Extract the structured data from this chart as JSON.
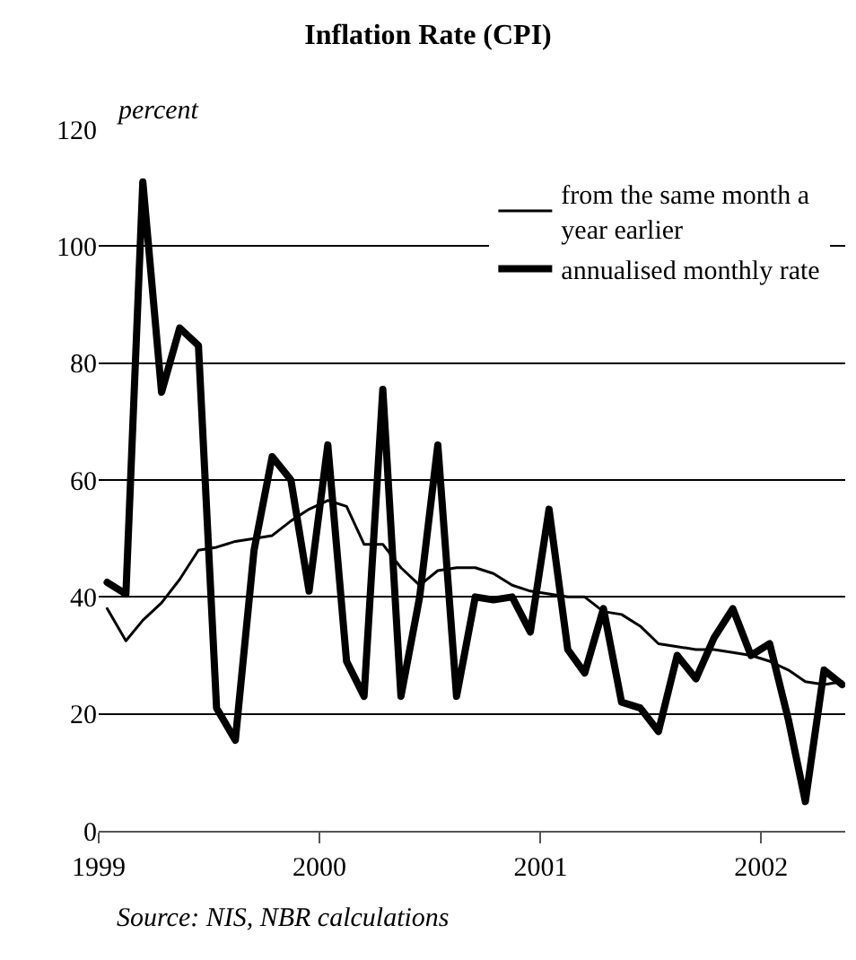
{
  "chart_data": {
    "type": "line",
    "title": "Inflation Rate (CPI)",
    "ylabel": "percent",
    "x": [
      "1999-01-15",
      "1999-02-15",
      "1999-03-15",
      "1999-04-15",
      "1999-05-15",
      "1999-06-15",
      "1999-07-15",
      "1999-08-15",
      "1999-09-15",
      "1999-10-15",
      "1999-11-15",
      "1999-12-15",
      "2000-01-15",
      "2000-02-15",
      "2000-03-15",
      "2000-04-15",
      "2000-05-15",
      "2000-06-15",
      "2000-07-15",
      "2000-08-15",
      "2000-09-15",
      "2000-10-15",
      "2000-11-15",
      "2000-12-15",
      "2001-01-15",
      "2001-02-15",
      "2001-03-15",
      "2001-04-15",
      "2001-05-15",
      "2001-06-15",
      "2001-07-15",
      "2001-08-15",
      "2001-09-15",
      "2001-10-15",
      "2001-11-15",
      "2001-12-15",
      "2002-01-15",
      "2002-02-15",
      "2002-03-15",
      "2002-04-15",
      "2002-05-15"
    ],
    "series": [
      {
        "name": "from the same month a year earlier",
        "color": "#000000",
        "values": [
          38,
          32.5,
          36,
          39,
          43,
          48,
          48.5,
          49.5,
          50,
          50.5,
          53,
          55,
          56.5,
          55.5,
          49,
          49,
          45,
          42,
          44.5,
          45,
          45,
          44,
          42,
          41,
          40.5,
          40,
          40,
          37.5,
          37,
          35,
          32,
          31.5,
          31,
          31,
          30.5,
          30,
          29,
          27.5,
          25.5,
          25,
          25.5
        ]
      },
      {
        "name": "annualised monthly rate",
        "color": "#000000",
        "values": [
          42.5,
          40.5,
          111,
          75,
          86,
          83,
          21,
          15.5,
          48,
          64,
          60,
          41,
          66,
          29,
          23,
          75.5,
          23,
          40,
          66,
          23,
          40,
          39.5,
          40,
          34,
          55,
          31,
          27,
          38,
          22,
          21,
          17,
          30,
          26,
          33,
          38,
          30,
          32,
          19,
          5,
          27.5,
          25
        ]
      }
    ],
    "xlim": [
      "1999-01-01",
      "2002-05-20"
    ],
    "xticks": [
      "1999",
      "2000",
      "2001",
      "2002"
    ],
    "ylim": [
      0,
      120
    ],
    "yticks": [
      0,
      20,
      40,
      60,
      80,
      100,
      120
    ],
    "grid": "y",
    "legend": "top right",
    "marker": "none",
    "line_style": "solid",
    "annotations": [
      "Source: NIS, NBR calculations"
    ]
  }
}
